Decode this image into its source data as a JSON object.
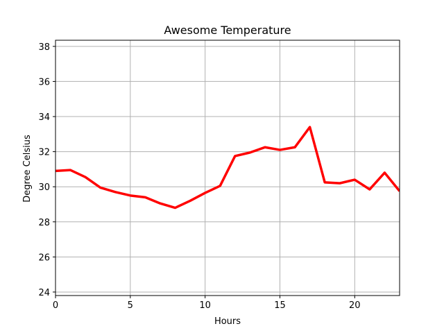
{
  "chart_data": {
    "type": "line",
    "title": "Awesome Temperature",
    "xlabel": "Hours",
    "ylabel": "Degree Celsius",
    "xlim": [
      0,
      23
    ],
    "ylim": [
      23.8,
      38.35
    ],
    "xticks": [
      0,
      5,
      10,
      15,
      20
    ],
    "yticks": [
      24,
      26,
      28,
      30,
      32,
      34,
      36,
      38
    ],
    "grid": true,
    "series": [
      {
        "color": "#ff0000",
        "x": [
          0,
          1,
          2,
          3,
          4,
          5,
          6,
          7,
          8,
          9,
          10,
          11,
          12,
          13,
          14,
          15,
          16,
          17,
          18,
          19,
          20,
          21,
          22,
          23
        ],
        "values": [
          30.9,
          30.95,
          30.55,
          29.95,
          29.7,
          29.5,
          29.4,
          29.05,
          28.8,
          29.2,
          29.65,
          30.05,
          31.75,
          31.95,
          32.25,
          32.1,
          32.25,
          33.4,
          30.25,
          30.2,
          30.4,
          29.85,
          30.8,
          29.75
        ]
      }
    ]
  }
}
